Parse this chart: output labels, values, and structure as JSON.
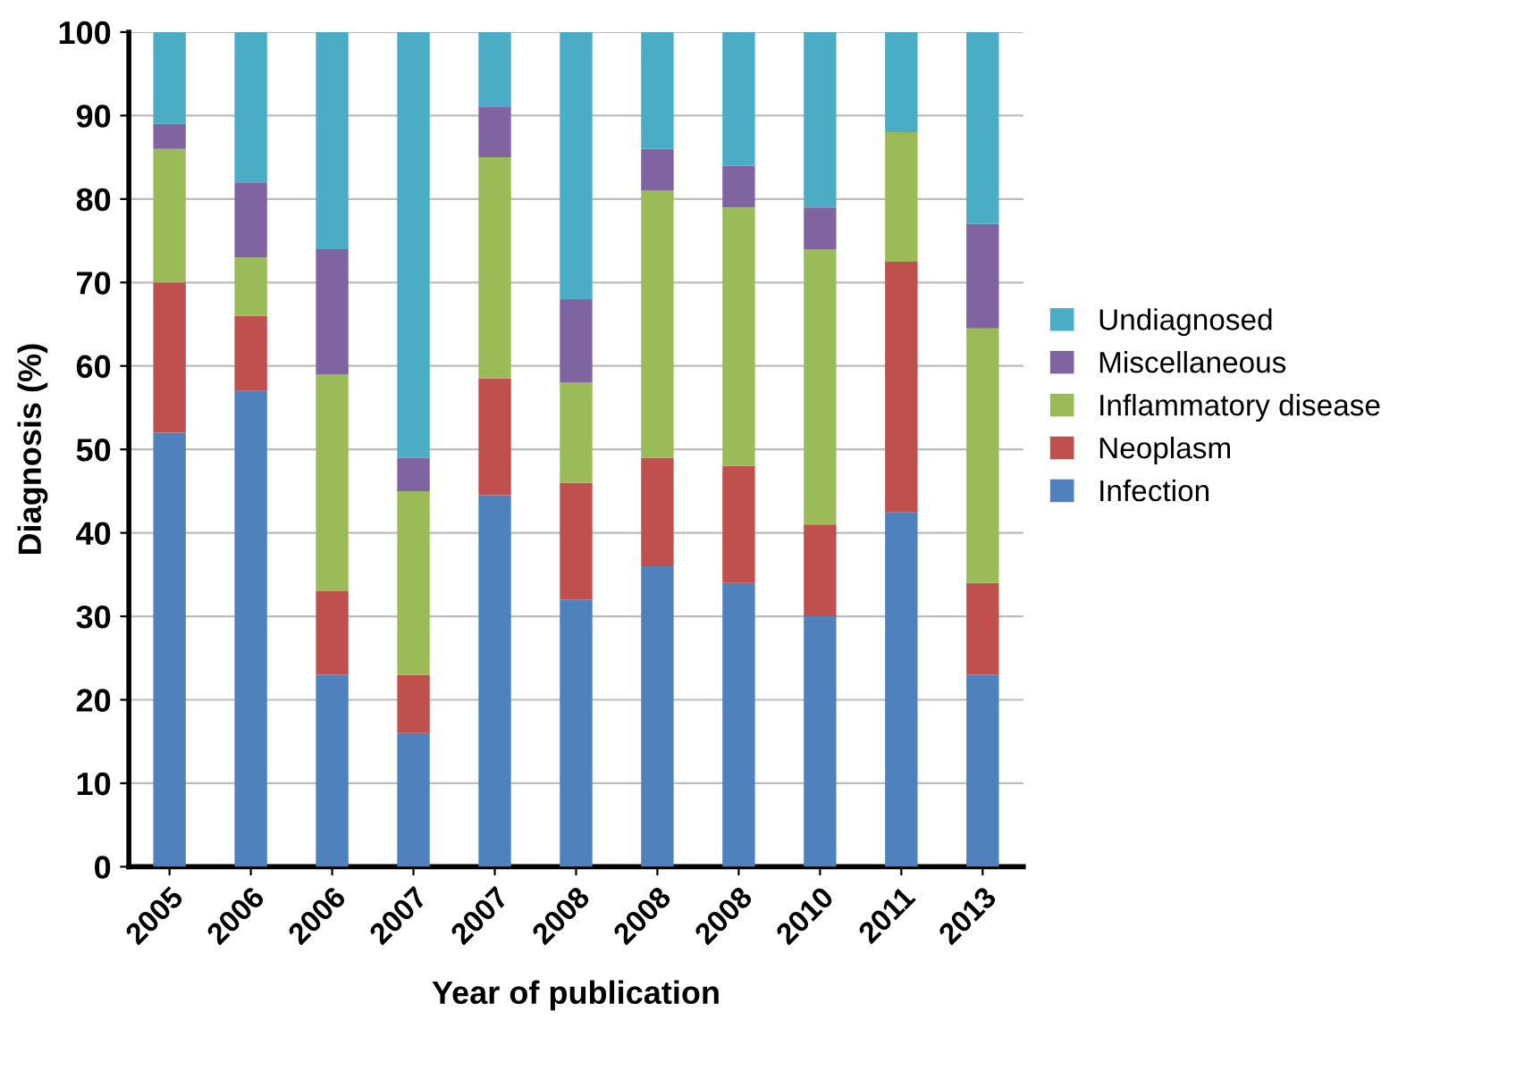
{
  "chart_data": {
    "type": "bar",
    "stacked": true,
    "xlabel": "Year of publication",
    "ylabel": "Diagnosis (%)",
    "categories": [
      "2005",
      "2006",
      "2006",
      "2007",
      "2007",
      "2008",
      "2008",
      "2008",
      "2010",
      "2011",
      "2013"
    ],
    "series": [
      {
        "name": "Infection",
        "color": "#4f81bd",
        "values": [
          52,
          57,
          23,
          16,
          44.5,
          32,
          36,
          34,
          30,
          42.5,
          23
        ]
      },
      {
        "name": "Neoplasm",
        "color": "#c0504d",
        "values": [
          18,
          9,
          10,
          7,
          14,
          14,
          13,
          14,
          11,
          30,
          11
        ]
      },
      {
        "name": "Inflammatory disease",
        "color": "#9bbb59",
        "values": [
          16,
          7,
          26,
          22,
          26.5,
          12,
          32,
          31,
          33,
          15.5,
          30.5
        ]
      },
      {
        "name": "Miscellaneous",
        "color": "#8064a2",
        "values": [
          3,
          9,
          15,
          4,
          6,
          10,
          5,
          5,
          5,
          0,
          12.5
        ]
      },
      {
        "name": "Undiagnosed",
        "color": "#4bacc6",
        "values": [
          11,
          18,
          26,
          51,
          9,
          32,
          14,
          16,
          21,
          12,
          23
        ]
      }
    ],
    "ylim": [
      0,
      100
    ],
    "yticks": [
      0,
      10,
      20,
      30,
      40,
      50,
      60,
      70,
      80,
      90,
      100
    ],
    "grid": "y",
    "legend": "right"
  }
}
